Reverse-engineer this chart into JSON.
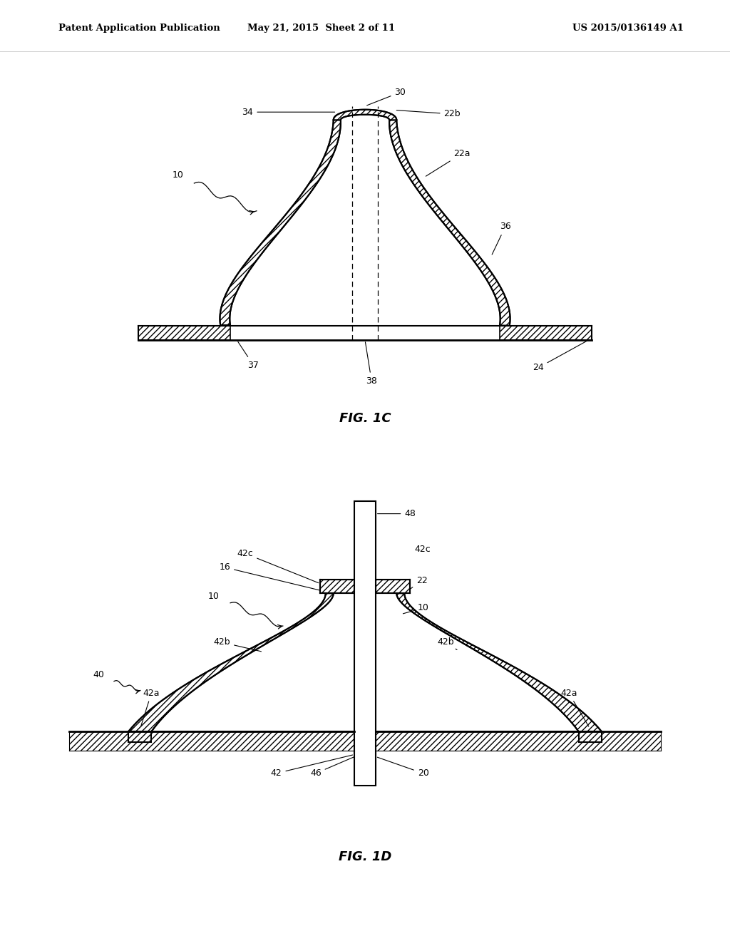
{
  "header_left": "Patent Application Publication",
  "header_mid": "May 21, 2015  Sheet 2 of 11",
  "header_right": "US 2015/0136149 A1",
  "fig1c_label": "FIG. 1C",
  "fig1d_label": "FIG. 1D",
  "bg_color": "#ffffff",
  "line_color": "#000000"
}
